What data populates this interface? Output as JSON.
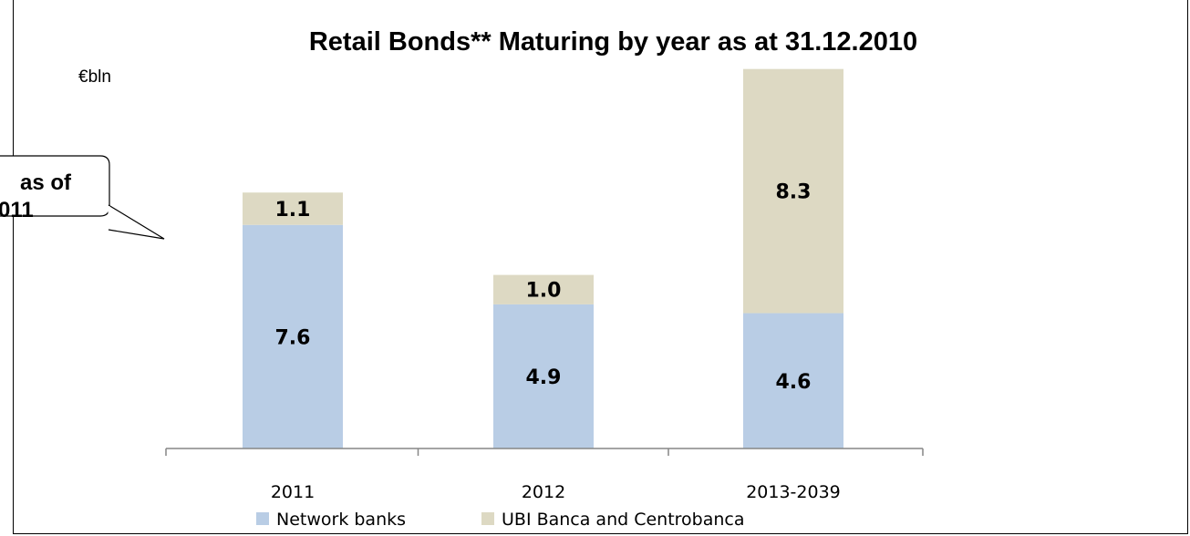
{
  "title": "Retail Bonds** Maturing by year as at 31.12.2010",
  "unit_label": "€bln",
  "callout": {
    "line1": "as of",
    "line2": "011"
  },
  "colors": {
    "network_banks": "#b9cde5",
    "ubi_banca": "#ddd9c3",
    "axis": "#868686"
  },
  "chart_data": {
    "type": "bar",
    "stacked": true,
    "categories": [
      "2011",
      "2012",
      "2013-2039"
    ],
    "series": [
      {
        "name": "Network banks",
        "values": [
          7.6,
          4.9,
          4.6
        ],
        "labels": [
          "7.6",
          "4.9",
          "4.6"
        ]
      },
      {
        "name": "UBI Banca and Centrobanca",
        "values": [
          1.1,
          1.0,
          8.3
        ],
        "labels": [
          "1.1",
          "1.0",
          "8.3"
        ]
      }
    ],
    "title": "Retail Bonds** Maturing by year as at 31.12.2010",
    "ylabel": "€bln",
    "ylim": [
      0,
      13.2
    ],
    "grid": false,
    "legend_position": "bottom"
  }
}
